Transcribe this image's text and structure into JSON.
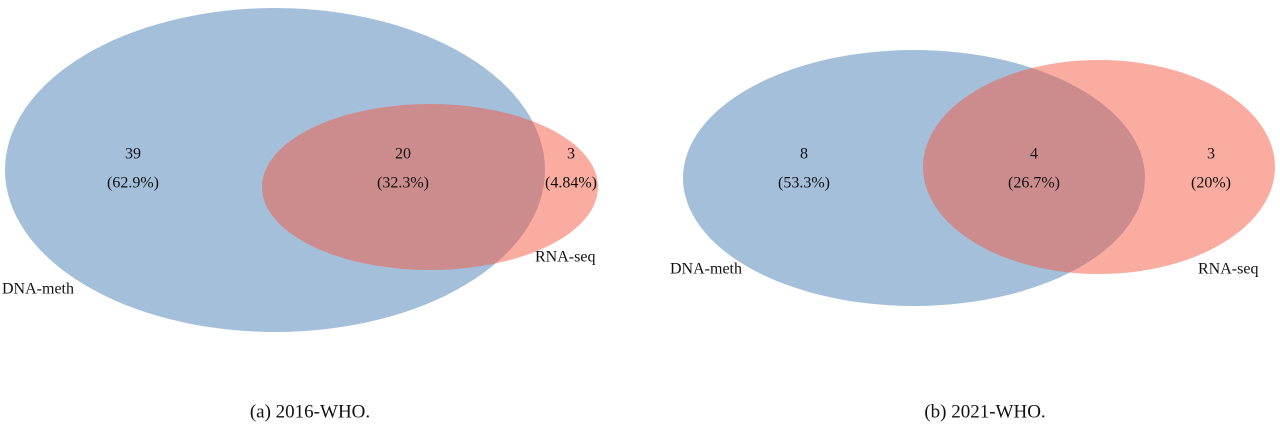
{
  "chart_data": [
    {
      "type": "venn",
      "caption": "(a) 2016-WHO.",
      "sets": [
        {
          "name": "DNA-meth",
          "color": "#4a7fb5"
        },
        {
          "name": "RNA-seq",
          "color": "#f45a40"
        }
      ],
      "values": [
        39,
        20,
        3
      ],
      "shares": {
        "values": [
          62.9,
          32.3,
          4.84
        ],
        "value_labels": [
          "(62.9%)",
          "(32.3%)",
          "(4.84%)"
        ]
      }
    },
    {
      "type": "venn",
      "caption": "(b) 2021-WHO.",
      "sets": [
        {
          "name": "DNA-meth",
          "color": "#4a7fb5"
        },
        {
          "name": "RNA-seq",
          "color": "#f45a40"
        }
      ],
      "values": [
        8,
        4,
        3
      ],
      "shares": {
        "values": [
          53.3,
          26.7,
          20
        ],
        "value_labels": [
          "(53.3%)",
          "(26.7%)",
          "(20%)"
        ]
      }
    }
  ]
}
